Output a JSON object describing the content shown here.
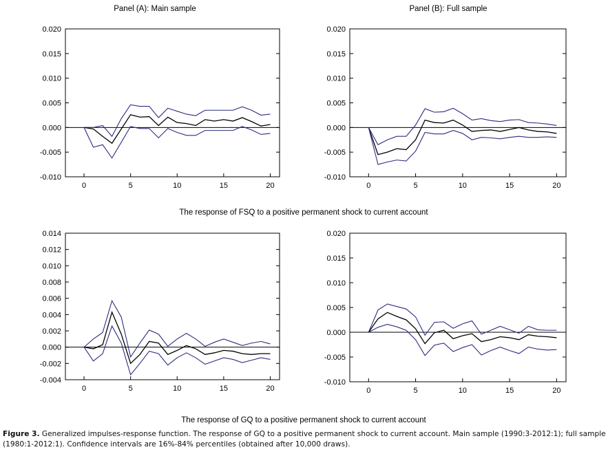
{
  "figure": {
    "row1_label": "The response of FSQ to a positive permanent shock to current account",
    "row2_label": "The response of GQ to a positive permanent shock to current account",
    "caption_label": "Figure 3.",
    "caption_text": "Generalized impulses-response function. The response of GQ to a positive permanent shock to current account. Main sample (1990:3-2012:1); full sample (1980:1-2012:1). Confidence intervals are 16%-84% percentiles (obtained after 10,000 draws)."
  },
  "chart_data": [
    {
      "type": "line",
      "title": "Panel (A): Main sample",
      "xlim": [
        -2,
        21
      ],
      "ylim": [
        -0.01,
        0.02
      ],
      "xticks": [
        "0",
        "5",
        "10",
        "15",
        "20"
      ],
      "yticks": [
        "0.020",
        "0.015",
        "0.010",
        "0.005",
        "0.000",
        "-0.005",
        "-0.010"
      ],
      "x": [
        0,
        1,
        2,
        3,
        4,
        5,
        6,
        7,
        8,
        9,
        10,
        11,
        12,
        13,
        14,
        15,
        16,
        17,
        18,
        19,
        20
      ],
      "series": [
        {
          "role": "upper",
          "color": "#2b2b80",
          "values": [
            0.0,
            0.0,
            0.0004,
            -0.0018,
            0.0018,
            0.0046,
            0.0043,
            0.0043,
            0.002,
            0.0039,
            0.0033,
            0.0027,
            0.0024,
            0.0035,
            0.0035,
            0.0035,
            0.0035,
            0.0042,
            0.0035,
            0.0025,
            0.0027
          ]
        },
        {
          "role": "response",
          "color": "#000000",
          "values": [
            0.0,
            -0.0003,
            -0.0018,
            -0.0032,
            -0.0003,
            0.0026,
            0.0021,
            0.0022,
            0.0004,
            0.0021,
            0.001,
            0.0008,
            0.0004,
            0.0016,
            0.0013,
            0.0016,
            0.0013,
            0.002,
            0.0012,
            0.0003,
            0.0006
          ]
        },
        {
          "role": "lower",
          "color": "#2b2b80",
          "values": [
            0.0,
            -0.004,
            -0.0035,
            -0.0062,
            -0.003,
            0.0002,
            -0.0002,
            -0.0002,
            -0.0021,
            -0.0002,
            -0.001,
            -0.0016,
            -0.0016,
            -0.0006,
            -0.0006,
            -0.0006,
            -0.0006,
            0.0002,
            -0.0005,
            -0.0014,
            -0.0012
          ]
        }
      ]
    },
    {
      "type": "line",
      "title": "Panel (B): Full sample",
      "xlim": [
        -2,
        21
      ],
      "ylim": [
        -0.01,
        0.02
      ],
      "xticks": [
        "0",
        "5",
        "10",
        "15",
        "20"
      ],
      "yticks": [
        "0.020",
        "0.015",
        "0.010",
        "0.005",
        "0.000",
        "-0.005",
        "-0.010"
      ],
      "x": [
        0,
        1,
        2,
        3,
        4,
        5,
        6,
        7,
        8,
        9,
        10,
        11,
        12,
        13,
        14,
        15,
        16,
        17,
        18,
        19,
        20
      ],
      "series": [
        {
          "role": "upper",
          "color": "#2b2b80",
          "values": [
            0.0,
            -0.0035,
            -0.0025,
            -0.0018,
            -0.0018,
            0.0005,
            0.0038,
            0.0031,
            0.0032,
            0.0039,
            0.0028,
            0.0015,
            0.0018,
            0.0014,
            0.0012,
            0.0015,
            0.0016,
            0.001,
            0.0009,
            0.0007,
            0.0004
          ]
        },
        {
          "role": "response",
          "color": "#000000",
          "values": [
            0.0,
            -0.0055,
            -0.005,
            -0.0043,
            -0.0045,
            -0.0025,
            0.0015,
            0.001,
            0.0009,
            0.0015,
            0.0005,
            -0.0008,
            -0.0006,
            -0.0005,
            -0.0008,
            -0.0004,
            0.0,
            -0.0005,
            -0.0008,
            -0.0009,
            -0.0012
          ]
        },
        {
          "role": "lower",
          "color": "#2b2b80",
          "values": [
            0.0,
            -0.0075,
            -0.007,
            -0.0066,
            -0.0068,
            -0.0048,
            -0.001,
            -0.0013,
            -0.0013,
            -0.0006,
            -0.0012,
            -0.0025,
            -0.002,
            -0.0021,
            -0.0023,
            -0.002,
            -0.0018,
            -0.002,
            -0.002,
            -0.0019,
            -0.002
          ]
        }
      ]
    },
    {
      "type": "line",
      "title": "",
      "xlim": [
        -2,
        21
      ],
      "ylim": [
        -0.004,
        0.014
      ],
      "xticks": [
        "0",
        "5",
        "10",
        "15",
        "20"
      ],
      "yticks": [
        "0.014",
        "0.012",
        "0.010",
        "0.008",
        "0.006",
        "0.004",
        "0.002",
        "0.000",
        "-0.002",
        "-0.004"
      ],
      "x": [
        0,
        1,
        2,
        3,
        4,
        5,
        6,
        7,
        8,
        9,
        10,
        11,
        12,
        13,
        14,
        15,
        16,
        17,
        18,
        19,
        20
      ],
      "series": [
        {
          "role": "upper",
          "color": "#2b2b80",
          "values": [
            0.0,
            0.001,
            0.0018,
            0.0057,
            0.0037,
            -0.0012,
            0.0005,
            0.0021,
            0.0016,
            0.0001,
            0.001,
            0.0017,
            0.001,
            0.0001,
            0.0006,
            0.001,
            0.0006,
            0.0002,
            0.0005,
            0.0007,
            0.0004
          ]
        },
        {
          "role": "response",
          "color": "#000000",
          "values": [
            0.0,
            -0.0002,
            0.0003,
            0.0043,
            0.0016,
            -0.002,
            -0.0009,
            0.0007,
            0.0005,
            -0.0009,
            -0.0004,
            0.0002,
            -0.0002,
            -0.0009,
            -0.0007,
            -0.0004,
            -0.0005,
            -0.0008,
            -0.0009,
            -0.0008,
            -0.0008
          ]
        },
        {
          "role": "lower",
          "color": "#2b2b80",
          "values": [
            0.0,
            -0.0017,
            -0.0008,
            0.0026,
            0.0005,
            -0.0034,
            -0.002,
            -0.0005,
            -0.0008,
            -0.0022,
            -0.0013,
            -0.0007,
            -0.0013,
            -0.0021,
            -0.0017,
            -0.0013,
            -0.0015,
            -0.0019,
            -0.0016,
            -0.0013,
            -0.0015
          ]
        }
      ]
    },
    {
      "type": "line",
      "title": "",
      "xlim": [
        -2,
        21
      ],
      "ylim": [
        -0.01,
        0.02
      ],
      "xticks": [
        "0",
        "5",
        "10",
        "15",
        "20"
      ],
      "yticks": [
        "0.020",
        "0.015",
        "0.010",
        "0.005",
        "0.000",
        "-0.005",
        "-0.010"
      ],
      "x": [
        0,
        1,
        2,
        3,
        4,
        5,
        6,
        7,
        8,
        9,
        10,
        11,
        12,
        13,
        14,
        15,
        16,
        17,
        18,
        19,
        20
      ],
      "series": [
        {
          "role": "upper",
          "color": "#2b2b80",
          "values": [
            0.0,
            0.0045,
            0.0057,
            0.0052,
            0.0047,
            0.0031,
            -0.0006,
            0.002,
            0.0021,
            0.0008,
            0.0017,
            0.0023,
            -0.0004,
            0.0004,
            0.0012,
            0.0005,
            -0.0002,
            0.0012,
            0.0005,
            0.0004,
            0.0004
          ]
        },
        {
          "role": "response",
          "color": "#000000",
          "values": [
            0.0,
            0.0027,
            0.004,
            0.0032,
            0.0025,
            0.0007,
            -0.0023,
            -0.0001,
            0.0004,
            -0.0013,
            -0.0007,
            -0.0003,
            -0.0019,
            -0.0015,
            -0.0009,
            -0.0011,
            -0.0015,
            -0.0005,
            -0.0008,
            -0.0009,
            -0.0011
          ]
        },
        {
          "role": "lower",
          "color": "#2b2b80",
          "values": [
            0.0,
            0.001,
            0.0016,
            0.0011,
            0.0004,
            -0.0015,
            -0.0047,
            -0.0026,
            -0.0022,
            -0.0039,
            -0.0031,
            -0.0025,
            -0.0046,
            -0.0037,
            -0.003,
            -0.0037,
            -0.0043,
            -0.003,
            -0.0034,
            -0.0036,
            -0.0035
          ]
        }
      ]
    }
  ]
}
